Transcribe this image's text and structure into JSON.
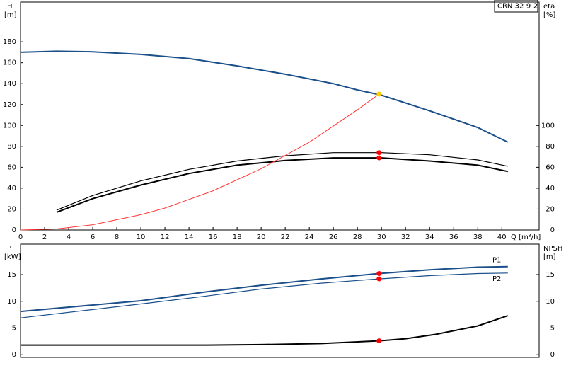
{
  "chart_data": [
    {
      "type": "line",
      "title": "CRN 32-9-2",
      "x_label": "Q [m³/h]",
      "y_label": "H",
      "y_unit": "[m]",
      "y2_label": "eta",
      "y2_unit": "[%]",
      "xlim": [
        0,
        43.1
      ],
      "xticks": [
        0,
        2,
        4,
        6,
        8,
        10,
        12,
        14,
        16,
        18,
        20,
        22,
        24,
        26,
        28,
        30,
        32,
        34,
        36,
        38,
        40
      ],
      "ylim": [
        0,
        218
      ],
      "yticks": [
        0,
        20,
        40,
        60,
        80,
        100,
        120,
        140,
        160,
        180
      ],
      "y2lim": [
        0,
        218
      ],
      "y2ticks": [
        0,
        20,
        40,
        60,
        80,
        100
      ],
      "series": [
        {
          "color": "#1b4f8a",
          "width": 2,
          "x": [
            0,
            3,
            6,
            10,
            14,
            18,
            22,
            26,
            28,
            30,
            34,
            38,
            40.5
          ],
          "values": [
            170,
            171,
            170.5,
            168,
            164,
            157,
            149,
            140,
            134,
            129,
            114,
            98,
            84
          ]
        },
        {
          "color": "#000000",
          "width": 1.2,
          "axis": "y2",
          "x": [
            3,
            6,
            10,
            14,
            18,
            22,
            26,
            30,
            34,
            38,
            40.5
          ],
          "values": [
            19,
            33,
            47,
            58,
            66,
            71,
            74,
            74,
            72,
            67,
            61
          ]
        },
        {
          "color": "#000000",
          "width": 2,
          "axis": "y2",
          "x": [
            3,
            6,
            10,
            14,
            18,
            22,
            26,
            30,
            34,
            38,
            40.5
          ],
          "values": [
            17,
            30,
            43,
            54,
            62,
            66.5,
            69,
            69,
            66,
            62,
            56
          ]
        },
        {
          "color": "#ff3333",
          "width": 1,
          "x": [
            0,
            3,
            6,
            10,
            12,
            16,
            20,
            24,
            28,
            29.8
          ],
          "values": [
            0,
            1,
            5,
            14.6,
            21,
            37.5,
            58.6,
            84,
            115,
            130
          ]
        }
      ],
      "markers": [
        {
          "color": "#ffcc00",
          "x": 29.8,
          "y": 130
        },
        {
          "color": "#ff0000",
          "axis": "y2",
          "x": 29.8,
          "y": 74
        },
        {
          "color": "#ff0000",
          "axis": "y2",
          "x": 29.8,
          "y": 69
        }
      ]
    },
    {
      "type": "line",
      "y_label": "P",
      "y_unit": "[kW]",
      "y2_label": "NPSH",
      "y2_unit": "[m]",
      "xlim": [
        0,
        43.1
      ],
      "ylim": [
        -0.5,
        20.7
      ],
      "yticks": [
        0,
        5,
        10,
        15
      ],
      "y2lim": [
        -0.5,
        20.7
      ],
      "y2ticks": [
        0,
        5,
        10,
        15
      ],
      "series": [
        {
          "name": "P1",
          "color": "#1b4f8a",
          "width": 2,
          "x": [
            0,
            10,
            15.5,
            20,
            25,
            29.8,
            34,
            38,
            40.5
          ],
          "values": [
            8.1,
            10.1,
            11.8,
            13,
            14.2,
            15.2,
            15.9,
            16.4,
            16.5
          ]
        },
        {
          "name": "P2",
          "color": "#1b4f8a",
          "width": 1.2,
          "x": [
            0,
            10,
            15.5,
            20,
            25,
            29.8,
            34,
            38,
            40.5
          ],
          "values": [
            6.9,
            9.5,
            11,
            12.3,
            13.4,
            14.2,
            14.8,
            15.2,
            15.3
          ]
        },
        {
          "color": "#000000",
          "width": 2,
          "axis": "y2",
          "x": [
            0,
            12,
            15.5,
            20,
            25,
            29.8,
            32,
            34.5,
            38,
            40.5
          ],
          "values": [
            1.8,
            1.8,
            1.8,
            1.9,
            2.1,
            2.6,
            3,
            3.8,
            5.4,
            7.3
          ]
        }
      ],
      "markers": [
        {
          "color": "#ff0000",
          "x": 29.8,
          "y": 15.2
        },
        {
          "color": "#ff0000",
          "x": 29.8,
          "y": 14.2
        },
        {
          "color": "#ff0000",
          "axis": "y2",
          "x": 29.8,
          "y": 2.6
        }
      ]
    }
  ]
}
